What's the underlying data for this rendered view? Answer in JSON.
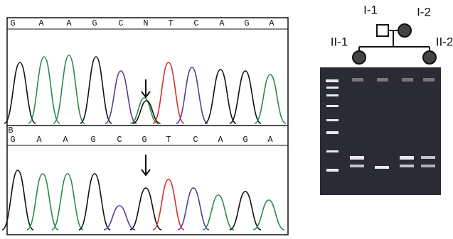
{
  "panel_a": {
    "bases": [
      "G",
      "A",
      "A",
      "G",
      "C",
      "N",
      "T",
      "C",
      "A",
      "G",
      "A"
    ]
  },
  "panel_b": {
    "label": "B",
    "bases": [
      "G",
      "A",
      "A",
      "G",
      "C",
      "G",
      "T",
      "C",
      "A",
      "G",
      "A"
    ]
  },
  "pedigree": {
    "labels": [
      "I-1",
      "I-2",
      "II-1",
      "II-2"
    ]
  }
}
